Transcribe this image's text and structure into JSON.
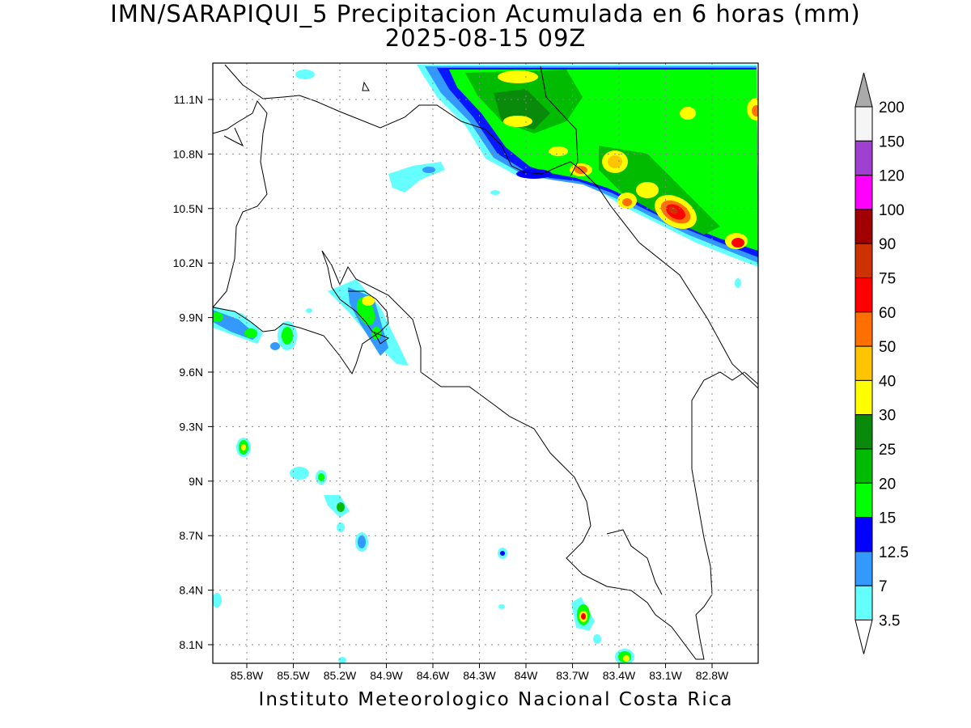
{
  "title": {
    "line1": "IMN/SARAPIQUI_5 Precipitacion Acumulada en 6 horas (mm)",
    "line2": "2025-08-15 09Z"
  },
  "footer": "Instituto Meteorologico Nacional Costa Rica",
  "map": {
    "lon_labels": [
      "85.8W",
      "85.5W",
      "85.2W",
      "84.9W",
      "84.6W",
      "84.3W",
      "84W",
      "83.7W",
      "83.4W",
      "83.1W",
      "82.8W"
    ],
    "lat_labels": [
      "11.1N",
      "10.8N",
      "10.5N",
      "10.2N",
      "9.9N",
      "9.6N",
      "9.3N",
      "9N",
      "8.7N",
      "8.4N",
      "8.1N"
    ]
  },
  "legend": {
    "levels": [
      "200",
      "150",
      "120",
      "100",
      "90",
      "75",
      "60",
      "50",
      "40",
      "30",
      "25",
      "20",
      "15",
      "12.5",
      "7",
      "3.5"
    ],
    "colors": [
      "#aaaaaa",
      "#f5f5f5",
      "#a040d0",
      "#ff00ff",
      "#a00000",
      "#cc3300",
      "#ff0000",
      "#ff7000",
      "#ffc400",
      "#ffff00",
      "#0a8a0a",
      "#00bb00",
      "#00ff00",
      "#0000ff",
      "#3399ff",
      "#66ffff"
    ]
  }
}
